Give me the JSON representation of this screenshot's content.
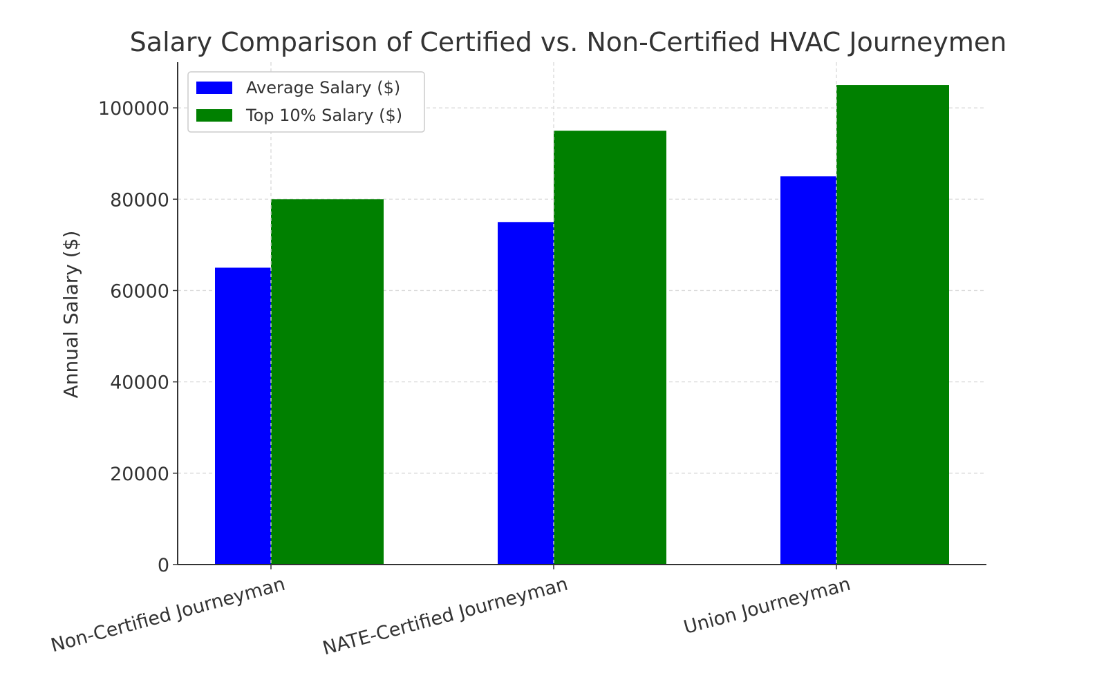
{
  "chart_data": {
    "type": "bar",
    "title": "Salary Comparison of Certified vs. Non-Certified HVAC Journeymen",
    "xlabel": "",
    "ylabel": "Annual Salary ($)",
    "categories": [
      "Non-Certified Journeyman",
      "NATE-Certified Journeyman",
      "Union Journeyman"
    ],
    "series": [
      {
        "name": "Average Salary ($)",
        "color": "#0000ff",
        "values": [
          65000,
          75000,
          85000
        ]
      },
      {
        "name": "Top 10% Salary ($)",
        "color": "#008000",
        "values": [
          80000,
          95000,
          105000
        ]
      }
    ],
    "ylim": [
      0,
      110000
    ],
    "yticks": [
      0,
      20000,
      40000,
      60000,
      80000,
      100000
    ],
    "grid": true,
    "legend_position": "top-left"
  }
}
